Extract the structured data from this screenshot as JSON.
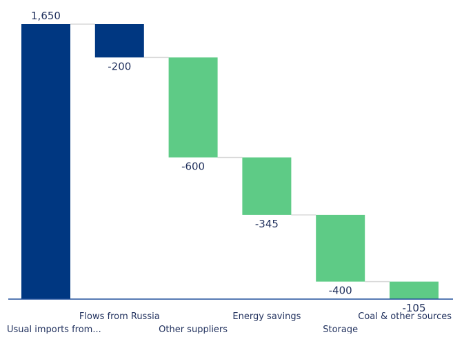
{
  "chart_data": {
    "type": "bar",
    "subtype": "waterfall",
    "categories": [
      "Usual imports from...",
      "Flows from Russia",
      "Other suppliers",
      "Energy savings",
      "Storage",
      "Coal & other sources"
    ],
    "values": [
      1650,
      -200,
      -600,
      -345,
      -400,
      -105
    ],
    "value_labels": [
      "1,650",
      "-200",
      "-600",
      "-345",
      "-400",
      "-105"
    ],
    "ylim": [
      0,
      1650
    ],
    "grid": false,
    "legend": "none",
    "colors": {
      "total": "#003781",
      "decrease_dark": "#003781",
      "decrease_light": "#5ecb86",
      "connector": "#d9d9d9",
      "axis": "#1f4e9a",
      "text": "#1f2f5c"
    },
    "bar_colors": [
      "#003781",
      "#003781",
      "#5ecb86",
      "#5ecb86",
      "#5ecb86",
      "#5ecb86"
    ]
  }
}
